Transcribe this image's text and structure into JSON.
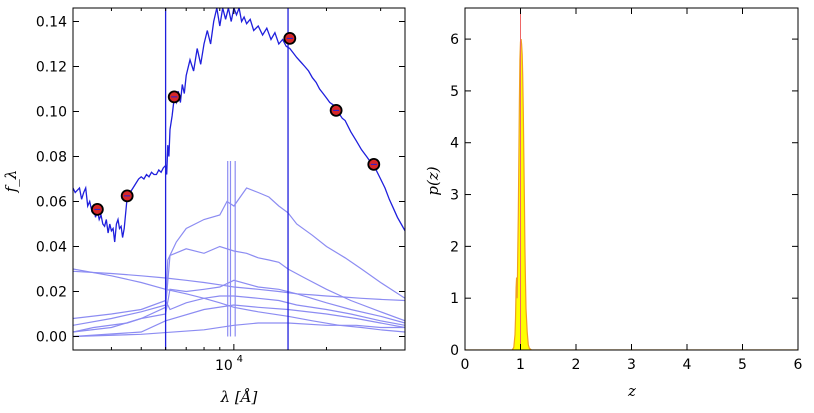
{
  "chart_data": [
    {
      "type": "line",
      "xscale": "log",
      "xlim": [
        3000,
        36000
      ],
      "ylim": [
        -0.006,
        0.146
      ],
      "xlabel": "λ [Å]",
      "ylabel": "f_λ",
      "x_ticks": [
        "10^4"
      ],
      "x_tick_values": [
        10000
      ],
      "y_ticks": [
        "0.00",
        "0.02",
        "0.04",
        "0.06",
        "0.08",
        "0.10",
        "0.12",
        "0.14"
      ],
      "y_tick_values": [
        0.0,
        0.02,
        0.04,
        0.06,
        0.08,
        0.1,
        0.12,
        0.14
      ],
      "grid": false,
      "colors": {
        "fit": "#1f1fdd",
        "components": "#8c8cf2",
        "marker_edge": "#000000",
        "marker_fill": "#d62728"
      },
      "photometry": {
        "x": [
          3600,
          4500,
          6400,
          15200,
          21500,
          28500
        ],
        "y": [
          0.0565,
          0.0625,
          0.1065,
          0.1325,
          0.1005,
          0.0765
        ]
      },
      "series": [
        {
          "x": [
            3000,
            3050,
            3100,
            3150,
            3200,
            3250,
            3300,
            3350,
            3400,
            3450,
            3500,
            3550,
            3600,
            3650,
            3700,
            3750,
            3800,
            3850,
            3900,
            3950,
            4000,
            4050,
            4100,
            4150,
            4200,
            4250,
            4300,
            4350,
            4400,
            4500,
            4600,
            4700,
            4800,
            4900,
            5000,
            5100,
            5200,
            5300,
            5400,
            5500,
            5600,
            5700,
            5800,
            5900,
            6000,
            6050,
            6100,
            6150,
            6200,
            6300,
            6400,
            6500,
            6600,
            6700,
            6800,
            6900,
            7000,
            7200,
            7400,
            7600,
            7800,
            8000,
            8200,
            8400,
            8600,
            8800,
            9000,
            9200,
            9400,
            9600,
            9800,
            10000,
            10200,
            10400,
            10600,
            10800,
            11000,
            11300,
            11600,
            12000,
            12400,
            12800,
            13200,
            13600,
            14000,
            14400,
            14800,
            15200,
            15600,
            16000,
            16500,
            17000,
            17500,
            18000,
            18500,
            19000,
            19500,
            20000,
            20500,
            21000,
            21500,
            22000,
            22500,
            23000,
            24000,
            25000,
            26000,
            27000,
            28000,
            29000,
            30000,
            31000,
            32000,
            33000,
            34000,
            35000,
            36000
          ],
          "y": [
            0.066,
            0.064,
            0.065,
            0.066,
            0.061,
            0.064,
            0.066,
            0.058,
            0.06,
            0.056,
            0.058,
            0.053,
            0.056,
            0.052,
            0.054,
            0.05,
            0.049,
            0.052,
            0.046,
            0.05,
            0.047,
            0.048,
            0.042,
            0.05,
            0.052,
            0.048,
            0.049,
            0.044,
            0.048,
            0.062,
            0.064,
            0.066,
            0.068,
            0.07,
            0.071,
            0.07,
            0.072,
            0.071,
            0.073,
            0.072,
            0.072,
            0.074,
            0.073,
            0.075,
            0.076,
            0.072,
            0.085,
            0.08,
            0.092,
            0.098,
            0.106,
            0.104,
            0.109,
            0.104,
            0.112,
            0.108,
            0.116,
            0.123,
            0.118,
            0.128,
            0.121,
            0.13,
            0.136,
            0.13,
            0.14,
            0.146,
            0.138,
            0.146,
            0.141,
            0.146,
            0.14,
            0.146,
            0.143,
            0.146,
            0.14,
            0.142,
            0.139,
            0.141,
            0.136,
            0.138,
            0.134,
            0.137,
            0.132,
            0.135,
            0.13,
            0.132,
            0.129,
            0.128,
            0.126,
            0.124,
            0.122,
            0.12,
            0.118,
            0.115,
            0.113,
            0.11,
            0.108,
            0.106,
            0.104,
            0.103,
            0.1,
            0.099,
            0.097,
            0.096,
            0.091,
            0.087,
            0.083,
            0.08,
            0.077,
            0.074,
            0.07,
            0.066,
            0.061,
            0.057,
            0.053,
            0.05,
            0.047
          ]
        },
        {
          "x": [
            3000,
            4000,
            5000,
            6000,
            6100,
            6500,
            7000,
            8000,
            9000,
            9500,
            10000,
            11000,
            12000,
            13000,
            14000,
            15000,
            16000,
            18000,
            20000,
            23000,
            26000,
            30000,
            36000
          ],
          "y": [
            0.005,
            0.008,
            0.011,
            0.014,
            0.034,
            0.042,
            0.048,
            0.052,
            0.054,
            0.06,
            0.058,
            0.066,
            0.064,
            0.062,
            0.058,
            0.055,
            0.05,
            0.045,
            0.04,
            0.035,
            0.03,
            0.024,
            0.017
          ]
        },
        {
          "x": [
            3000,
            4000,
            5000,
            6000,
            6200,
            7000,
            8000,
            9000,
            10000,
            11000,
            12000,
            13000,
            14000,
            15000,
            17000,
            20000,
            24000,
            30000,
            36000
          ],
          "y": [
            0.002,
            0.004,
            0.008,
            0.013,
            0.036,
            0.039,
            0.037,
            0.04,
            0.038,
            0.037,
            0.035,
            0.034,
            0.033,
            0.03,
            0.026,
            0.021,
            0.016,
            0.011,
            0.007
          ]
        },
        {
          "x": [
            3000,
            4000,
            5000,
            6000,
            7000,
            8000,
            9000,
            10000,
            12000,
            15000,
            18000,
            22000,
            26000,
            30000,
            36000
          ],
          "y": [
            0.03,
            0.027,
            0.024,
            0.021,
            0.019,
            0.017,
            0.015,
            0.013,
            0.011,
            0.009,
            0.007,
            0.005,
            0.004,
            0.003,
            0.002
          ]
        },
        {
          "x": [
            3000,
            4000,
            5000,
            6000,
            7000,
            8000,
            9000,
            10000,
            12000,
            14000,
            16000,
            18000,
            20000,
            23000,
            26000,
            30000,
            36000
          ],
          "y": [
            0.029,
            0.028,
            0.027,
            0.026,
            0.025,
            0.024,
            0.023,
            0.022,
            0.021,
            0.02,
            0.019,
            0.0185,
            0.018,
            0.0175,
            0.017,
            0.0165,
            0.016
          ]
        },
        {
          "x": [
            3000,
            3500,
            4500,
            5000,
            6000,
            6200,
            7000,
            8000,
            9000,
            10000,
            12000,
            14000,
            16000,
            20000,
            24000,
            30000,
            36000
          ],
          "y": [
            0.002,
            0.004,
            0.006,
            0.008,
            0.01,
            0.021,
            0.02,
            0.021,
            0.022,
            0.025,
            0.022,
            0.021,
            0.019,
            0.015,
            0.012,
            0.009,
            0.006
          ]
        },
        {
          "x": [
            3000,
            4000,
            5000,
            6000,
            6200,
            7000,
            8000,
            9000,
            10000,
            12000,
            14000,
            16000,
            20000,
            24000,
            30000,
            36000
          ],
          "y": [
            0.008,
            0.01,
            0.012,
            0.016,
            0.012,
            0.015,
            0.017,
            0.018,
            0.018,
            0.017,
            0.016,
            0.014,
            0.012,
            0.01,
            0.007,
            0.005
          ]
        },
        {
          "x": [
            3000,
            5000,
            6000,
            8000,
            10000,
            12000,
            15000,
            20000,
            25000,
            30000,
            36000
          ],
          "y": [
            0.0,
            0.002,
            0.007,
            0.012,
            0.014,
            0.013,
            0.012,
            0.01,
            0.008,
            0.006,
            0.004
          ]
        },
        {
          "x": [
            3000,
            5000,
            8000,
            10000,
            12000,
            15000,
            20000,
            25000,
            30000,
            36000
          ],
          "y": [
            0.0,
            0.001,
            0.003,
            0.005,
            0.006,
            0.006,
            0.005,
            0.005,
            0.004,
            0.004
          ]
        }
      ],
      "spikes": {
        "strong_x": [
          6000,
          15000
        ],
        "faint_x": [
          9550,
          9750,
          10100
        ]
      }
    },
    {
      "type": "area",
      "xlim": [
        0,
        6
      ],
      "ylim": [
        0,
        6.6
      ],
      "xlabel": "z",
      "ylabel": "p(z)",
      "x_ticks": [
        "0",
        "1",
        "2",
        "3",
        "4",
        "5",
        "6"
      ],
      "x_tick_values": [
        0,
        1,
        2,
        3,
        4,
        5,
        6
      ],
      "y_ticks": [
        "0",
        "1",
        "2",
        "3",
        "4",
        "5",
        "6"
      ],
      "y_tick_values": [
        0,
        1,
        2,
        3,
        4,
        5,
        6
      ],
      "colors": {
        "fill": "#ffff00",
        "edge": "#f0a020",
        "line": "#ee6666"
      },
      "reference_z": 1.0,
      "x": [
        0.0,
        0.85,
        0.88,
        0.9,
        0.91,
        0.92,
        0.93,
        0.94,
        0.95,
        0.96,
        0.97,
        0.98,
        0.99,
        1.0,
        1.01,
        1.02,
        1.03,
        1.04,
        1.05,
        1.06,
        1.07,
        1.08,
        1.09,
        1.1,
        1.12,
        1.14,
        1.16,
        1.2,
        6.0
      ],
      "y": [
        0.0,
        0.0,
        0.05,
        0.3,
        0.6,
        1.2,
        1.4,
        1.0,
        1.8,
        2.6,
        3.6,
        4.8,
        5.6,
        5.95,
        6.0,
        5.9,
        5.7,
        5.3,
        4.6,
        3.8,
        2.9,
        2.0,
        1.3,
        0.8,
        0.35,
        0.1,
        0.03,
        0.0,
        0.0
      ]
    }
  ]
}
